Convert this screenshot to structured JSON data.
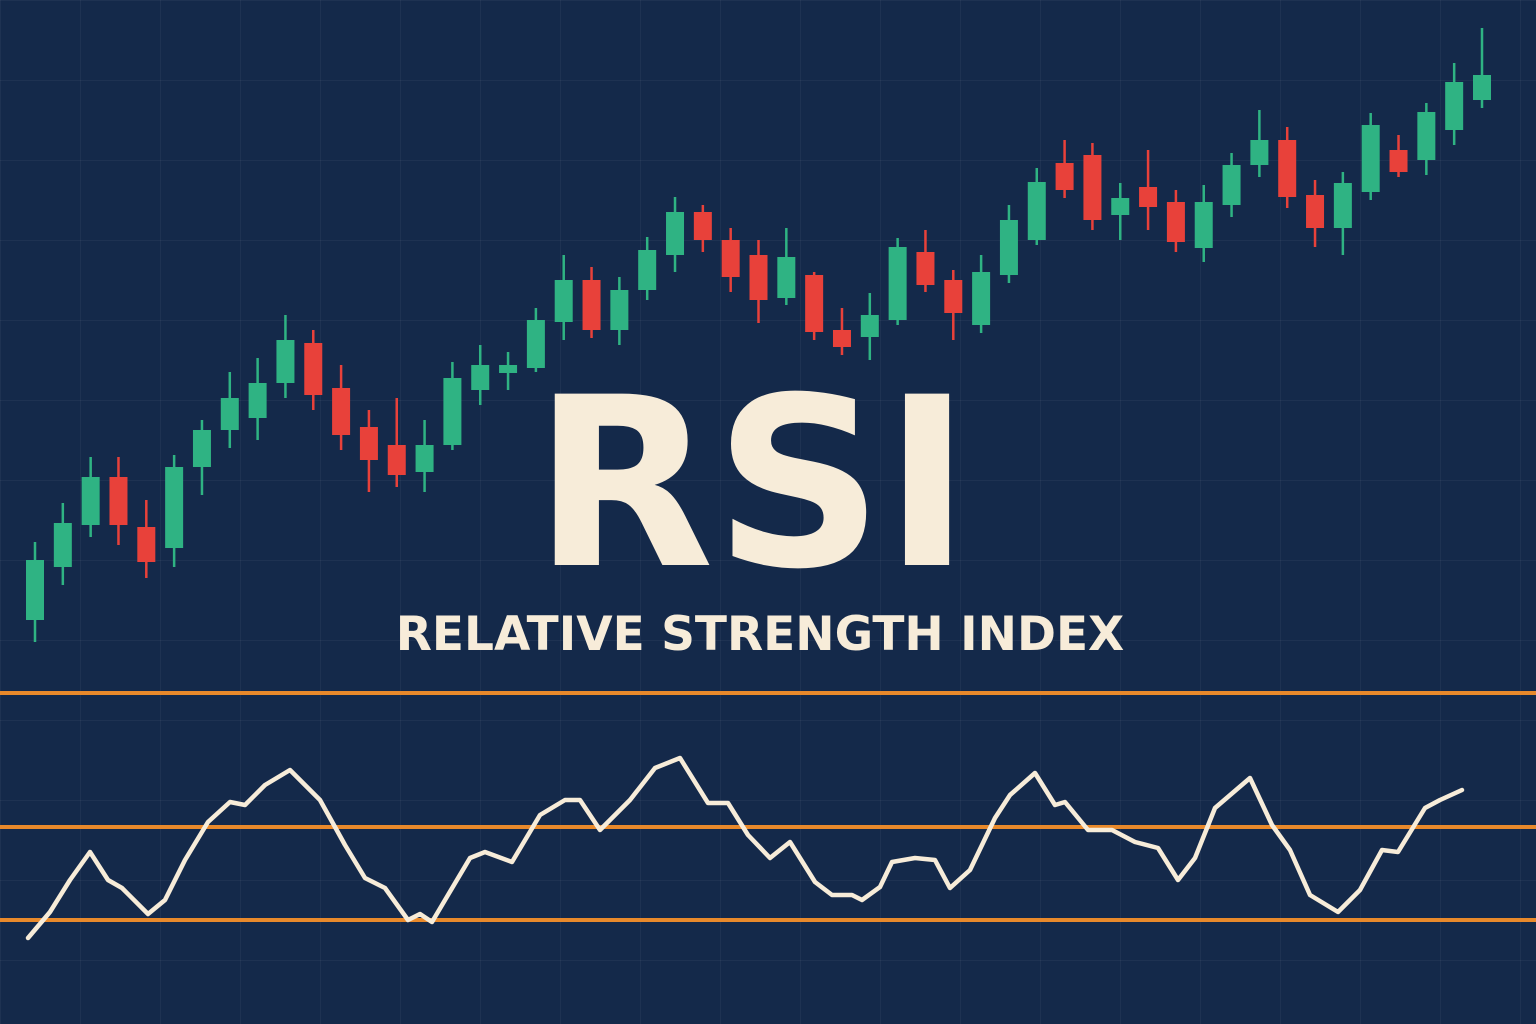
{
  "chart_data": [
    {
      "type": "candlestick",
      "title": "RSI",
      "subtitle": "RELATIVE STRENGTH INDEX",
      "up_color": "#2fb383",
      "down_color": "#e8413a",
      "ylim": [
        0,
        700
      ],
      "open": [
        80,
        133,
        175,
        223,
        173,
        152,
        233,
        270,
        282,
        317,
        357,
        312,
        273,
        255,
        228,
        255,
        310,
        327,
        332,
        378,
        420,
        370,
        410,
        445,
        488,
        460,
        445,
        402,
        425,
        370,
        363,
        380,
        448,
        420,
        375,
        425,
        460,
        537,
        545,
        485,
        513,
        498,
        452,
        495,
        535,
        560,
        505,
        472,
        508,
        550,
        540,
        570,
        600
      ],
      "close": [
        140,
        177,
        223,
        175,
        138,
        233,
        270,
        302,
        317,
        360,
        305,
        265,
        240,
        225,
        255,
        322,
        335,
        335,
        380,
        420,
        370,
        410,
        450,
        488,
        460,
        423,
        400,
        443,
        368,
        353,
        385,
        453,
        415,
        387,
        428,
        480,
        518,
        510,
        480,
        502,
        493,
        458,
        498,
        535,
        560,
        503,
        472,
        517,
        575,
        528,
        588,
        618,
        625
      ],
      "high": [
        158,
        197,
        243,
        243,
        200,
        245,
        280,
        328,
        342,
        385,
        370,
        335,
        290,
        302,
        280,
        338,
        355,
        348,
        392,
        445,
        433,
        423,
        463,
        503,
        495,
        472,
        460,
        472,
        428,
        392,
        407,
        462,
        470,
        430,
        445,
        495,
        532,
        560,
        557,
        517,
        550,
        510,
        515,
        547,
        590,
        573,
        520,
        528,
        587,
        565,
        597,
        637,
        672
      ],
      "low": [
        58,
        115,
        163,
        155,
        122,
        133,
        205,
        252,
        260,
        302,
        290,
        250,
        208,
        213,
        208,
        250,
        295,
        310,
        328,
        360,
        362,
        355,
        400,
        428,
        448,
        408,
        377,
        395,
        360,
        345,
        340,
        375,
        408,
        360,
        367,
        417,
        455,
        502,
        470,
        460,
        470,
        448,
        438,
        483,
        523,
        492,
        453,
        445,
        500,
        523,
        525,
        555,
        592
      ]
    },
    {
      "type": "line",
      "color": "#f7ecd9",
      "level_color": "#e8892b",
      "levels": [
        331,
        197,
        104
      ],
      "xlim": [
        0,
        1536
      ],
      "ylim": [
        0,
        1024
      ],
      "x": [
        28,
        50,
        70,
        90,
        108,
        122,
        148,
        165,
        185,
        208,
        230,
        245,
        265,
        290,
        320,
        345,
        365,
        385,
        408,
        420,
        432,
        448,
        470,
        485,
        512,
        540,
        565,
        580,
        600,
        630,
        655,
        680,
        708,
        728,
        748,
        770,
        790,
        815,
        832,
        852,
        862,
        880,
        892,
        915,
        935,
        950,
        970,
        995,
        1010,
        1035,
        1055,
        1065,
        1088,
        1112,
        1135,
        1158,
        1178,
        1195,
        1215,
        1250,
        1272,
        1290,
        1310,
        1338,
        1360,
        1382,
        1398,
        1425,
        1440,
        1462
      ],
      "values": [
        86,
        112,
        144,
        172,
        144,
        136,
        110,
        124,
        164,
        202,
        222,
        219,
        239,
        254,
        224,
        179,
        146,
        136,
        104,
        110,
        102,
        129,
        166,
        172,
        162,
        209,
        224,
        224,
        194,
        224,
        256,
        266,
        221,
        221,
        189,
        166,
        182,
        142,
        129,
        129,
        124,
        137,
        162,
        166,
        164,
        136,
        154,
        206,
        229,
        251,
        219,
        222,
        194,
        194,
        182,
        176,
        144,
        166,
        216,
        246,
        199,
        174,
        129,
        112,
        134,
        174,
        172,
        216,
        224,
        234
      ]
    }
  ]
}
